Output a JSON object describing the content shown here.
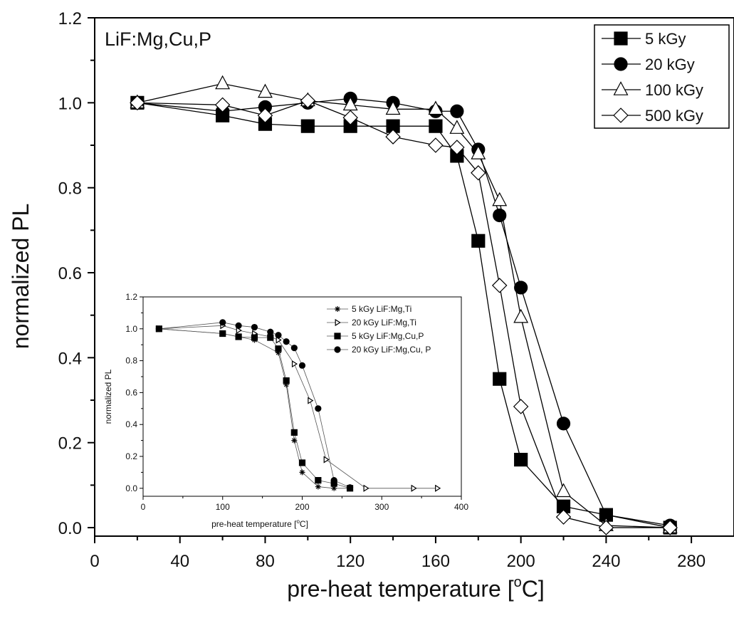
{
  "chart_data": [
    {
      "type": "line",
      "xlabel": "pre-heat temperature [",
      "xlabel_sup": "o",
      "xlabel_tail": "C]",
      "ylabel": "normalized PL",
      "annotation": "LiF:Mg,Cu,P",
      "xlim": [
        0,
        300
      ],
      "ylim": [
        -0.02,
        1.2
      ],
      "xticks": [
        "0",
        "40",
        "80",
        "120",
        "160",
        "200",
        "240",
        "280"
      ],
      "yticks": [
        "0.0",
        "0.2",
        "0.4",
        "0.6",
        "0.8",
        "1.0",
        "1.2"
      ],
      "legend_position": "top-right",
      "series": [
        {
          "name": "5 kGy",
          "marker": "square",
          "x": [
            20,
            60,
            80,
            100,
            120,
            140,
            160,
            170,
            180,
            190,
            200,
            220,
            240,
            270
          ],
          "y": [
            1.0,
            0.97,
            0.95,
            0.945,
            0.945,
            0.945,
            0.945,
            0.875,
            0.675,
            0.35,
            0.16,
            0.05,
            0.03,
            0.0
          ]
        },
        {
          "name": "20 kGy",
          "marker": "circle",
          "x": [
            20,
            60,
            80,
            100,
            120,
            140,
            160,
            170,
            180,
            190,
            200,
            220,
            240,
            270
          ],
          "y": [
            1.0,
            0.98,
            0.99,
            1.0,
            1.01,
            1.0,
            0.98,
            0.98,
            0.89,
            0.735,
            0.565,
            0.245,
            0.03,
            0.005
          ]
        },
        {
          "name": "100 kGy",
          "marker": "triangle",
          "x": [
            20,
            60,
            80,
            100,
            120,
            140,
            160,
            170,
            180,
            190,
            200,
            220,
            240,
            270
          ],
          "y": [
            1.0,
            1.045,
            1.025,
            1.005,
            0.995,
            0.985,
            0.985,
            0.94,
            0.88,
            0.77,
            0.495,
            0.085,
            0.005,
            0.0
          ]
        },
        {
          "name": "500 kGy",
          "marker": "diamond",
          "x": [
            20,
            60,
            80,
            100,
            120,
            140,
            160,
            170,
            180,
            190,
            200,
            220,
            240,
            270
          ],
          "y": [
            1.0,
            0.995,
            0.97,
            1.005,
            0.965,
            0.92,
            0.9,
            0.895,
            0.835,
            0.57,
            0.285,
            0.025,
            0.0,
            0.0
          ]
        }
      ]
    },
    {
      "type": "line",
      "xlabel": "pre-heat temperature [",
      "xlabel_sup": "o",
      "xlabel_tail": "C]",
      "ylabel": "normalized PL",
      "xlim": [
        0,
        400
      ],
      "ylim": [
        -0.05,
        1.2
      ],
      "xticks": [
        "0",
        "100",
        "200",
        "300",
        "400"
      ],
      "yticks": [
        "0.0",
        "0.2",
        "0.4",
        "0.6",
        "0.8",
        "1.0",
        "1.2"
      ],
      "legend_position": "top-right",
      "series": [
        {
          "name": "5 kGy LiF:Mg,Ti",
          "marker": "asterisk",
          "x": [
            20,
            100,
            140,
            170,
            180,
            190,
            200,
            220,
            240,
            260
          ],
          "y": [
            1.0,
            0.97,
            0.93,
            0.85,
            0.65,
            0.3,
            0.1,
            0.01,
            0.0,
            0.0
          ]
        },
        {
          "name": "20 kGy LiF:Mg,Ti",
          "marker": "triangle-right",
          "x": [
            20,
            100,
            120,
            140,
            160,
            170,
            190,
            210,
            230,
            280,
            340,
            370
          ],
          "y": [
            1.0,
            1.02,
            0.99,
            0.97,
            0.95,
            0.93,
            0.78,
            0.55,
            0.18,
            0.0,
            0.0,
            0.0
          ]
        },
        {
          "name": "5 kGy LiF:Mg,Cu,P",
          "marker": "square",
          "x": [
            20,
            100,
            120,
            140,
            160,
            170,
            180,
            190,
            200,
            220,
            240,
            260
          ],
          "y": [
            1.0,
            0.97,
            0.95,
            0.945,
            0.945,
            0.875,
            0.675,
            0.35,
            0.16,
            0.05,
            0.03,
            0.0
          ]
        },
        {
          "name": "20 kGy LiF:Mg,Cu, P",
          "marker": "circle",
          "x": [
            20,
            100,
            120,
            140,
            160,
            170,
            180,
            190,
            200,
            220,
            240,
            260
          ],
          "y": [
            1.0,
            1.04,
            1.02,
            1.01,
            0.98,
            0.96,
            0.92,
            0.88,
            0.77,
            0.5,
            0.05,
            0.005
          ]
        }
      ]
    }
  ]
}
